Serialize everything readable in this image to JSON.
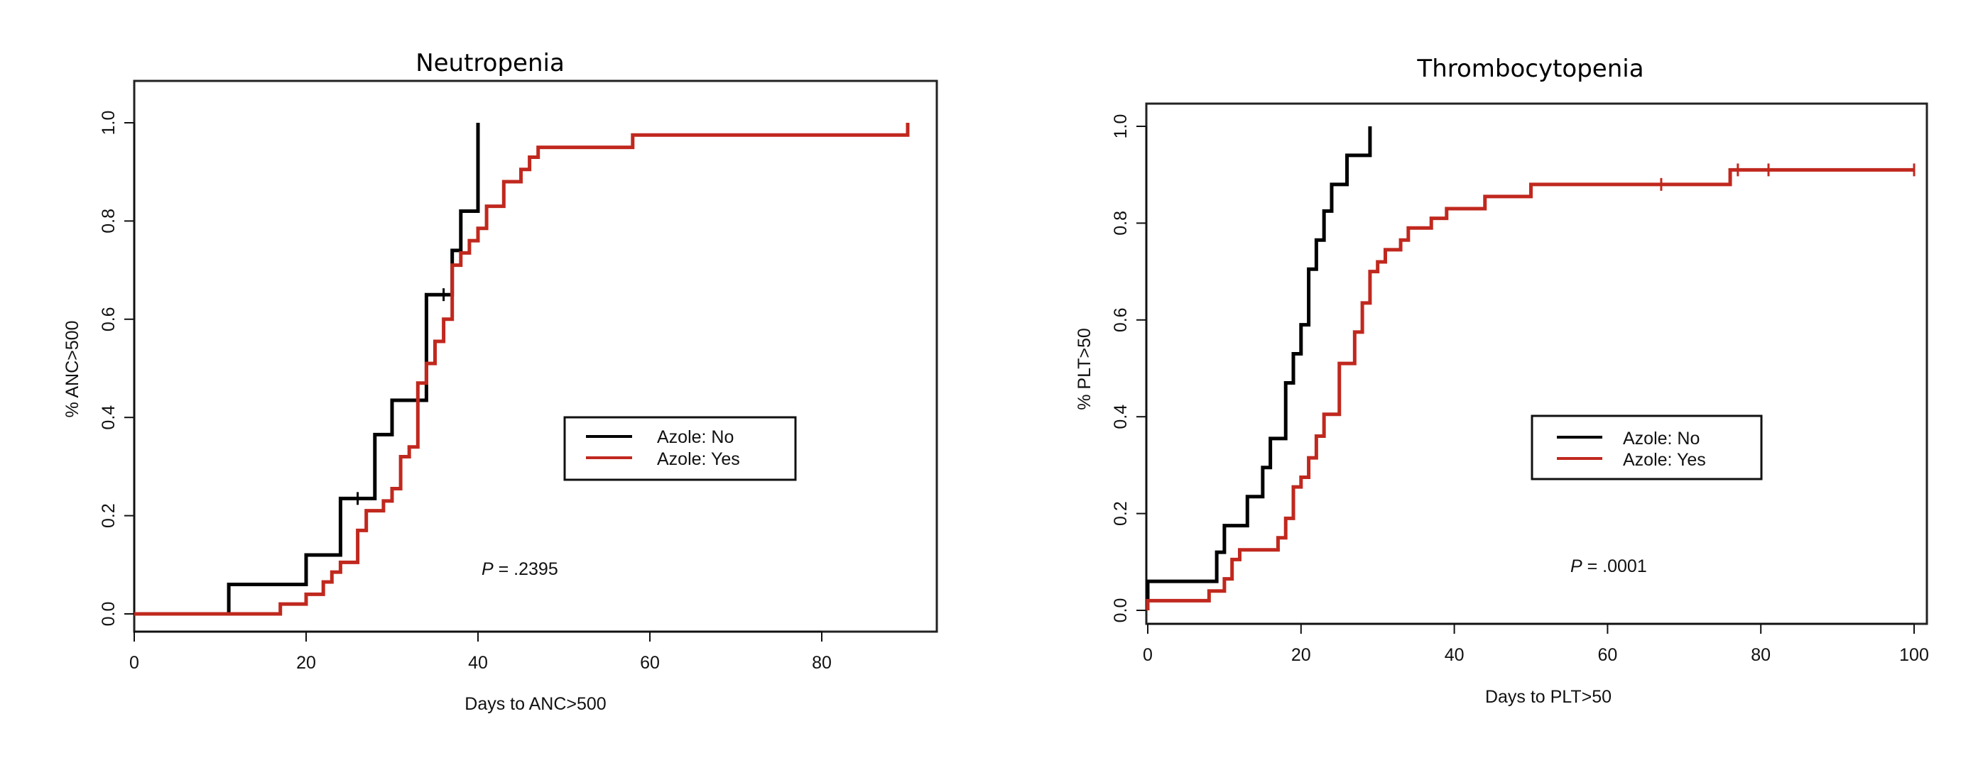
{
  "chart_data": [
    {
      "type": "line",
      "subtype": "kaplan-meier step",
      "title": "Neutropenia",
      "xlabel": "Days to ANC>500",
      "ylabel": "% ANC>500",
      "xlim": [
        0,
        93
      ],
      "ylim": [
        -0.03,
        1.04
      ],
      "xticks": [
        0,
        20,
        40,
        60,
        80
      ],
      "yticks": [
        "0.0",
        "0.2",
        "0.4",
        "0.6",
        "0.8",
        "1.0"
      ],
      "grid": false,
      "legend": {
        "position": "center-right",
        "entries": [
          "Azole: No",
          "Azole: Yes"
        ]
      },
      "annotation": {
        "p_label": "P",
        "p_value": " = .2395"
      },
      "series": [
        {
          "name": "Azole: No",
          "color": "#000000",
          "steps": [
            [
              0,
              0.0
            ],
            [
              11,
              0.06
            ],
            [
              20,
              0.12
            ],
            [
              24,
              0.235
            ],
            [
              28,
              0.365
            ],
            [
              30,
              0.435
            ],
            [
              34,
              0.65
            ],
            [
              37,
              0.74
            ],
            [
              38,
              0.82
            ],
            [
              40,
              1.0
            ]
          ],
          "end": 40,
          "censored": [
            [
              26,
              0.235
            ],
            [
              36,
              0.65
            ]
          ]
        },
        {
          "name": "Azole: Yes",
          "color": "#c0281e",
          "steps": [
            [
              0,
              0.0
            ],
            [
              17,
              0.02
            ],
            [
              20,
              0.04
            ],
            [
              22,
              0.065
            ],
            [
              23,
              0.085
            ],
            [
              24,
              0.105
            ],
            [
              26,
              0.17
            ],
            [
              27,
              0.21
            ],
            [
              29,
              0.23
            ],
            [
              30,
              0.255
            ],
            [
              31,
              0.32
            ],
            [
              32,
              0.34
            ],
            [
              33,
              0.47
            ],
            [
              34,
              0.51
            ],
            [
              35,
              0.555
            ],
            [
              36,
              0.6
            ],
            [
              37,
              0.71
            ],
            [
              38,
              0.735
            ],
            [
              39,
              0.76
            ],
            [
              40,
              0.785
            ],
            [
              41,
              0.83
            ],
            [
              43,
              0.88
            ],
            [
              45,
              0.905
            ],
            [
              46,
              0.93
            ],
            [
              47,
              0.95
            ],
            [
              58,
              0.975
            ],
            [
              90,
              1.0
            ]
          ],
          "end": 90,
          "censored": []
        }
      ]
    },
    {
      "type": "line",
      "subtype": "kaplan-meier step",
      "title": "Thrombocytopenia",
      "xlabel": "Days to PLT>50",
      "ylabel": "% PLT>50",
      "xlim": [
        0,
        104
      ],
      "ylim": [
        -0.04,
        1.04
      ],
      "xticks": [
        0,
        20,
        40,
        60,
        80,
        100
      ],
      "yticks": [
        "0.0",
        "0.2",
        "0.4",
        "0.6",
        "0.8",
        "1.0"
      ],
      "grid": false,
      "legend": {
        "position": "center-right",
        "entries": [
          "Azole: No",
          "Azole: Yes"
        ]
      },
      "annotation": {
        "p_label": "P",
        "p_value": " = .0001"
      },
      "series": [
        {
          "name": "Azole: No",
          "color": "#000000",
          "steps": [
            [
              0,
              0.06
            ],
            [
              9,
              0.12
            ],
            [
              10,
              0.175
            ],
            [
              13,
              0.235
            ],
            [
              15,
              0.295
            ],
            [
              16,
              0.355
            ],
            [
              18,
              0.47
            ],
            [
              19,
              0.53
            ],
            [
              20,
              0.59
            ],
            [
              21,
              0.705
            ],
            [
              22,
              0.765
            ],
            [
              23,
              0.825
            ],
            [
              24,
              0.88
            ],
            [
              26,
              0.94
            ],
            [
              29,
              1.0
            ]
          ],
          "start_y": 0.0,
          "end": 29,
          "censored": []
        },
        {
          "name": "Azole: Yes",
          "color": "#c0281e",
          "steps": [
            [
              0,
              0.02
            ],
            [
              8,
              0.04
            ],
            [
              10,
              0.065
            ],
            [
              11,
              0.105
            ],
            [
              12,
              0.125
            ],
            [
              17,
              0.15
            ],
            [
              18,
              0.19
            ],
            [
              19,
              0.255
            ],
            [
              20,
              0.275
            ],
            [
              21,
              0.315
            ],
            [
              22,
              0.36
            ],
            [
              23,
              0.405
            ],
            [
              25,
              0.51
            ],
            [
              27,
              0.575
            ],
            [
              28,
              0.635
            ],
            [
              29,
              0.7
            ],
            [
              30,
              0.72
            ],
            [
              31,
              0.745
            ],
            [
              33,
              0.765
            ],
            [
              34,
              0.79
            ],
            [
              37,
              0.81
            ],
            [
              39,
              0.83
            ],
            [
              44,
              0.855
            ],
            [
              50,
              0.88
            ],
            [
              76,
              0.91
            ]
          ],
          "start_y": 0.0,
          "end": 100,
          "censored": [
            [
              67,
              0.88
            ],
            [
              77,
              0.91
            ],
            [
              81,
              0.91
            ],
            [
              100,
              0.91
            ]
          ]
        }
      ]
    }
  ]
}
